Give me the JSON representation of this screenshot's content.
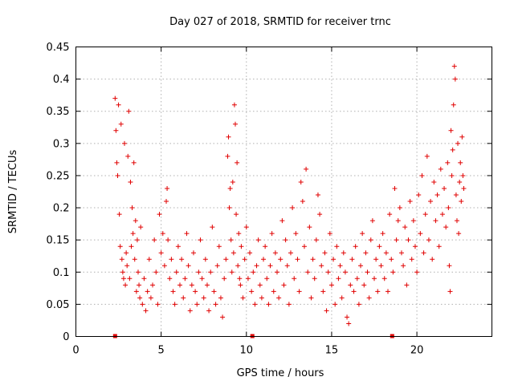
{
  "chart_data": {
    "type": "scatter",
    "title": "Day 027 of 2018, SRMTID for receiver trnc",
    "xlabel": "GPS time / hours",
    "ylabel": "SRMTID / TECUs",
    "xlim": [
      0,
      24.4
    ],
    "ylim": [
      0,
      0.45
    ],
    "grid": true,
    "xticks": [
      {
        "value": 0,
        "label": "0"
      },
      {
        "value": 5,
        "label": "5"
      },
      {
        "value": 10,
        "label": "10"
      },
      {
        "value": 15,
        "label": "15"
      },
      {
        "value": 20,
        "label": "20"
      }
    ],
    "yticks": [
      {
        "value": 0,
        "label": "0"
      },
      {
        "value": 0.05,
        "label": "0.05"
      },
      {
        "value": 0.1,
        "label": "0.1"
      },
      {
        "value": 0.15,
        "label": "0.15"
      },
      {
        "value": 0.2,
        "label": "0.2"
      },
      {
        "value": 0.25,
        "label": "0.25"
      },
      {
        "value": 0.3,
        "label": "0.3"
      },
      {
        "value": 0.35,
        "label": "0.35"
      },
      {
        "value": 0.4,
        "label": "0.4"
      },
      {
        "value": 0.45,
        "label": "0.45"
      }
    ],
    "marker_color": "#e00000",
    "series": [
      {
        "name": "SRMTID",
        "marker": "plus",
        "points": [
          [
            2.3,
            0.37
          ],
          [
            2.35,
            0.32
          ],
          [
            2.4,
            0.27
          ],
          [
            2.45,
            0.25
          ],
          [
            2.5,
            0.36
          ],
          [
            2.55,
            0.19
          ],
          [
            2.6,
            0.14
          ],
          [
            2.65,
            0.33
          ],
          [
            2.7,
            0.12
          ],
          [
            2.75,
            0.1
          ],
          [
            2.8,
            0.09
          ],
          [
            2.85,
            0.3
          ],
          [
            2.9,
            0.08
          ],
          [
            2.95,
            0.13
          ],
          [
            3.0,
            0.11
          ],
          [
            3.05,
            0.28
          ],
          [
            3.1,
            0.35
          ],
          [
            3.15,
            0.09
          ],
          [
            3.2,
            0.24
          ],
          [
            3.25,
            0.14
          ],
          [
            3.3,
            0.2
          ],
          [
            3.35,
            0.16
          ],
          [
            3.4,
            0.27
          ],
          [
            3.45,
            0.12
          ],
          [
            3.5,
            0.18
          ],
          [
            3.55,
            0.07
          ],
          [
            3.6,
            0.15
          ],
          [
            3.65,
            0.1
          ],
          [
            3.7,
            0.08
          ],
          [
            3.75,
            0.06
          ],
          [
            3.8,
            0.17
          ],
          [
            3.9,
            0.05
          ],
          [
            4.0,
            0.09
          ],
          [
            4.1,
            0.04
          ],
          [
            4.2,
            0.07
          ],
          [
            4.3,
            0.12
          ],
          [
            4.4,
            0.06
          ],
          [
            4.5,
            0.08
          ],
          [
            4.6,
            0.15
          ],
          [
            4.7,
            0.1
          ],
          [
            4.8,
            0.05
          ],
          [
            4.9,
            0.19
          ],
          [
            5.0,
            0.13
          ],
          [
            5.1,
            0.16
          ],
          [
            5.2,
            0.11
          ],
          [
            5.3,
            0.21
          ],
          [
            5.35,
            0.23
          ],
          [
            5.4,
            0.15
          ],
          [
            5.5,
            0.09
          ],
          [
            5.6,
            0.12
          ],
          [
            5.7,
            0.07
          ],
          [
            5.8,
            0.05
          ],
          [
            5.9,
            0.1
          ],
          [
            6.0,
            0.14
          ],
          [
            6.1,
            0.08
          ],
          [
            6.2,
            0.12
          ],
          [
            6.3,
            0.06
          ],
          [
            6.4,
            0.09
          ],
          [
            6.5,
            0.16
          ],
          [
            6.6,
            0.11
          ],
          [
            6.7,
            0.04
          ],
          [
            6.8,
            0.08
          ],
          [
            6.9,
            0.13
          ],
          [
            7.0,
            0.07
          ],
          [
            7.1,
            0.05
          ],
          [
            7.2,
            0.1
          ],
          [
            7.3,
            0.15
          ],
          [
            7.4,
            0.09
          ],
          [
            7.5,
            0.06
          ],
          [
            7.6,
            0.12
          ],
          [
            7.7,
            0.08
          ],
          [
            7.8,
            0.04
          ],
          [
            7.9,
            0.1
          ],
          [
            8.0,
            0.17
          ],
          [
            8.1,
            0.07
          ],
          [
            8.2,
            0.05
          ],
          [
            8.3,
            0.11
          ],
          [
            8.4,
            0.14
          ],
          [
            8.5,
            0.06
          ],
          [
            8.6,
            0.03
          ],
          [
            8.7,
            0.09
          ],
          [
            8.8,
            0.12
          ],
          [
            8.9,
            0.28
          ],
          [
            8.95,
            0.31
          ],
          [
            9.0,
            0.2
          ],
          [
            9.05,
            0.23
          ],
          [
            9.1,
            0.15
          ],
          [
            9.15,
            0.1
          ],
          [
            9.2,
            0.24
          ],
          [
            9.25,
            0.13
          ],
          [
            9.3,
            0.36
          ],
          [
            9.35,
            0.33
          ],
          [
            9.4,
            0.19
          ],
          [
            9.45,
            0.27
          ],
          [
            9.5,
            0.11
          ],
          [
            9.55,
            0.16
          ],
          [
            9.6,
            0.09
          ],
          [
            9.65,
            0.08
          ],
          [
            9.7,
            0.14
          ],
          [
            9.8,
            0.06
          ],
          [
            9.9,
            0.12
          ],
          [
            10.0,
            0.17
          ],
          [
            10.1,
            0.09
          ],
          [
            10.2,
            0.13
          ],
          [
            10.3,
            0.07
          ],
          [
            10.4,
            0.1
          ],
          [
            10.5,
            0.05
          ],
          [
            10.6,
            0.11
          ],
          [
            10.7,
            0.15
          ],
          [
            10.8,
            0.08
          ],
          [
            10.9,
            0.06
          ],
          [
            11.0,
            0.12
          ],
          [
            11.1,
            0.14
          ],
          [
            11.2,
            0.09
          ],
          [
            11.3,
            0.05
          ],
          [
            11.4,
            0.11
          ],
          [
            11.5,
            0.16
          ],
          [
            11.6,
            0.07
          ],
          [
            11.7,
            0.13
          ],
          [
            11.8,
            0.1
          ],
          [
            11.9,
            0.06
          ],
          [
            12.0,
            0.12
          ],
          [
            12.1,
            0.18
          ],
          [
            12.2,
            0.08
          ],
          [
            12.3,
            0.15
          ],
          [
            12.4,
            0.11
          ],
          [
            12.5,
            0.05
          ],
          [
            12.6,
            0.13
          ],
          [
            12.7,
            0.2
          ],
          [
            12.8,
            0.09
          ],
          [
            12.9,
            0.16
          ],
          [
            13.0,
            0.12
          ],
          [
            13.1,
            0.07
          ],
          [
            13.2,
            0.24
          ],
          [
            13.3,
            0.21
          ],
          [
            13.4,
            0.14
          ],
          [
            13.5,
            0.26
          ],
          [
            13.6,
            0.1
          ],
          [
            13.7,
            0.17
          ],
          [
            13.8,
            0.06
          ],
          [
            13.9,
            0.12
          ],
          [
            14.0,
            0.09
          ],
          [
            14.1,
            0.15
          ],
          [
            14.2,
            0.22
          ],
          [
            14.3,
            0.19
          ],
          [
            14.4,
            0.11
          ],
          [
            14.5,
            0.07
          ],
          [
            14.6,
            0.13
          ],
          [
            14.7,
            0.04
          ],
          [
            14.8,
            0.1
          ],
          [
            14.9,
            0.16
          ],
          [
            15.0,
            0.08
          ],
          [
            15.1,
            0.12
          ],
          [
            15.2,
            0.05
          ],
          [
            15.3,
            0.14
          ],
          [
            15.4,
            0.09
          ],
          [
            15.5,
            0.11
          ],
          [
            15.6,
            0.06
          ],
          [
            15.7,
            0.13
          ],
          [
            15.8,
            0.1
          ],
          [
            15.9,
            0.03
          ],
          [
            16.0,
            0.02
          ],
          [
            16.1,
            0.08
          ],
          [
            16.2,
            0.12
          ],
          [
            16.3,
            0.07
          ],
          [
            16.4,
            0.14
          ],
          [
            16.5,
            0.09
          ],
          [
            16.6,
            0.05
          ],
          [
            16.7,
            0.11
          ],
          [
            16.8,
            0.16
          ],
          [
            16.9,
            0.08
          ],
          [
            17.0,
            0.13
          ],
          [
            17.1,
            0.1
          ],
          [
            17.2,
            0.06
          ],
          [
            17.3,
            0.15
          ],
          [
            17.4,
            0.18
          ],
          [
            17.5,
            0.09
          ],
          [
            17.6,
            0.12
          ],
          [
            17.7,
            0.07
          ],
          [
            17.8,
            0.14
          ],
          [
            17.9,
            0.11
          ],
          [
            18.0,
            0.16
          ],
          [
            18.1,
            0.09
          ],
          [
            18.2,
            0.13
          ],
          [
            18.3,
            0.07
          ],
          [
            18.4,
            0.19
          ],
          [
            18.5,
            0.12
          ],
          [
            18.6,
            0.1
          ],
          [
            18.7,
            0.23
          ],
          [
            18.8,
            0.15
          ],
          [
            18.9,
            0.18
          ],
          [
            19.0,
            0.2
          ],
          [
            19.1,
            0.13
          ],
          [
            19.2,
            0.11
          ],
          [
            19.3,
            0.17
          ],
          [
            19.4,
            0.08
          ],
          [
            19.5,
            0.15
          ],
          [
            19.6,
            0.21
          ],
          [
            19.7,
            0.12
          ],
          [
            19.8,
            0.18
          ],
          [
            19.9,
            0.14
          ],
          [
            20.0,
            0.1
          ],
          [
            20.1,
            0.22
          ],
          [
            20.2,
            0.16
          ],
          [
            20.3,
            0.25
          ],
          [
            20.4,
            0.13
          ],
          [
            20.5,
            0.19
          ],
          [
            20.6,
            0.28
          ],
          [
            20.7,
            0.15
          ],
          [
            20.8,
            0.21
          ],
          [
            20.9,
            0.12
          ],
          [
            21.0,
            0.24
          ],
          [
            21.1,
            0.18
          ],
          [
            21.2,
            0.22
          ],
          [
            21.3,
            0.14
          ],
          [
            21.4,
            0.26
          ],
          [
            21.5,
            0.19
          ],
          [
            21.6,
            0.23
          ],
          [
            21.7,
            0.17
          ],
          [
            21.8,
            0.27
          ],
          [
            21.85,
            0.2
          ],
          [
            21.9,
            0.11
          ],
          [
            21.95,
            0.07
          ],
          [
            22.0,
            0.32
          ],
          [
            22.05,
            0.25
          ],
          [
            22.1,
            0.29
          ],
          [
            22.15,
            0.36
          ],
          [
            22.2,
            0.42
          ],
          [
            22.25,
            0.4
          ],
          [
            22.3,
            0.22
          ],
          [
            22.35,
            0.18
          ],
          [
            22.4,
            0.3
          ],
          [
            22.45,
            0.16
          ],
          [
            22.5,
            0.24
          ],
          [
            22.55,
            0.27
          ],
          [
            22.6,
            0.21
          ],
          [
            22.65,
            0.31
          ],
          [
            22.7,
            0.25
          ],
          [
            22.75,
            0.23
          ]
        ]
      }
    ],
    "bottom_markers_x": [
      2.3,
      10.35,
      18.55
    ]
  }
}
